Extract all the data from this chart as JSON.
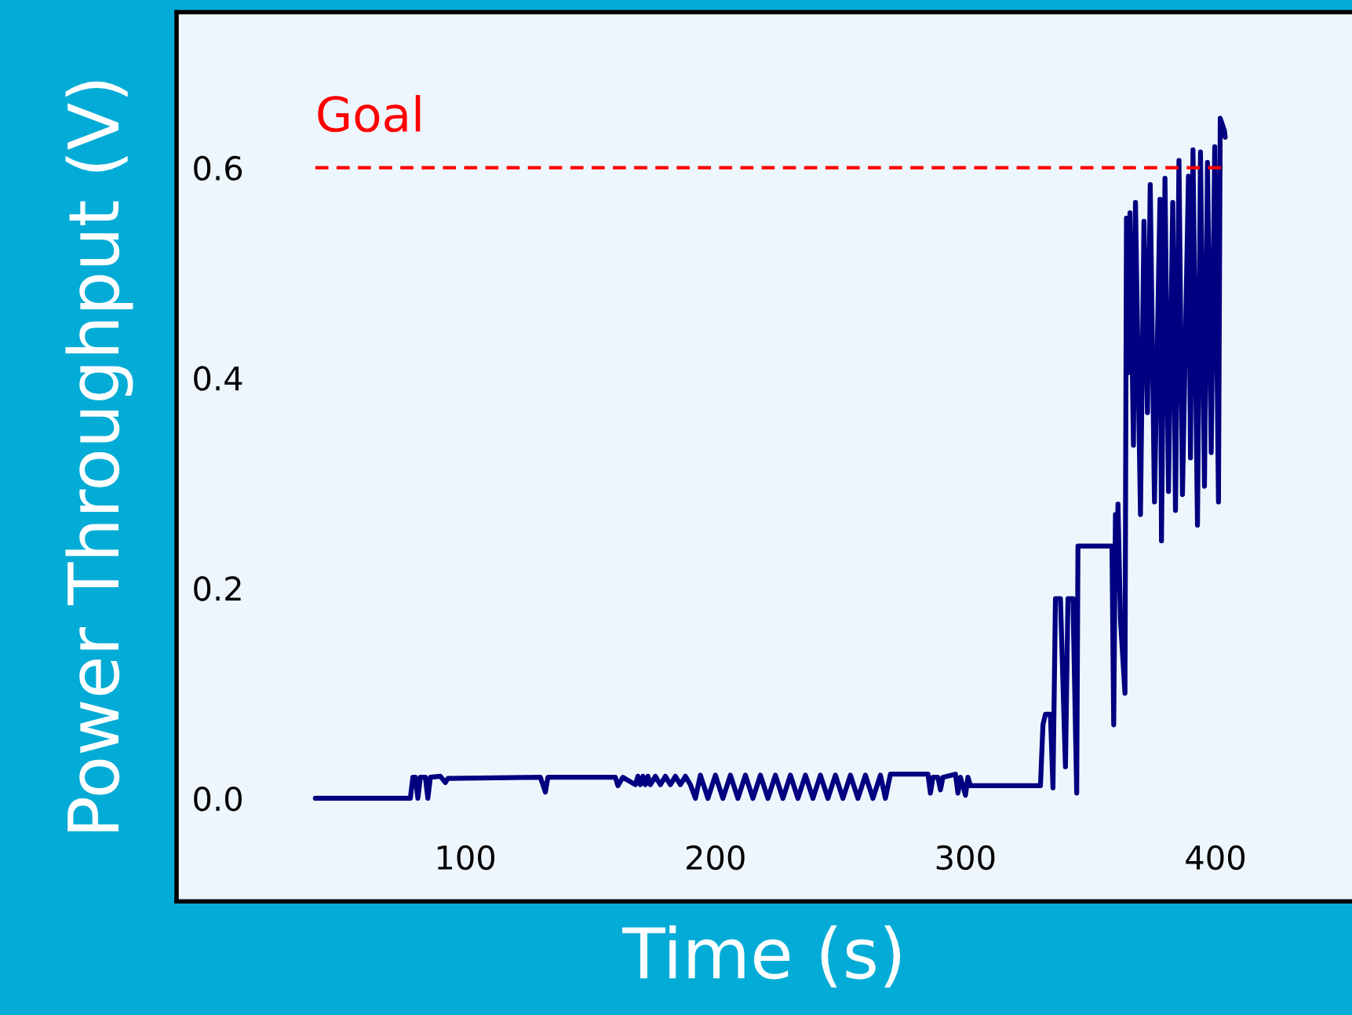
{
  "chart_data": {
    "type": "line",
    "xlabel": "Time (s)",
    "ylabel": "Power Throughput (V)",
    "xlim": [
      -15.5,
      454.6
    ],
    "ylim": [
      -0.098,
      0.748
    ],
    "xticks": [
      100,
      200,
      300,
      400
    ],
    "yticks": [
      {
        "value": 0,
        "label": "0.0"
      },
      0.2,
      0.4,
      0.6
    ],
    "grid": false,
    "legend": false,
    "ref_lines": [
      {
        "axis": "y",
        "value": 0.6,
        "label": "Goal",
        "color": "#ff0000",
        "line_style": "dashed"
      }
    ],
    "series": [
      {
        "color": "#000080",
        "line_style": "solid",
        "marker": "none",
        "x": [
          40,
          78,
          79,
          80,
          81,
          82,
          84,
          85,
          86,
          90,
          92,
          93,
          130,
          132,
          133,
          160,
          161,
          163,
          168,
          169,
          170,
          171,
          172,
          173,
          174,
          176,
          178,
          180,
          182,
          184,
          186,
          188,
          190,
          192,
          194,
          197,
          200,
          203,
          206,
          209,
          212,
          215,
          218,
          221,
          224,
          227,
          230,
          233,
          236,
          239,
          242,
          245,
          248,
          251,
          254,
          257,
          260,
          263,
          266,
          268,
          270,
          285,
          286,
          287,
          289,
          290,
          291,
          296,
          297,
          298,
          300,
          301,
          302,
          330,
          331,
          332,
          334,
          335,
          336,
          338,
          340,
          341,
          343,
          344.5,
          345,
          358.6,
          359.3,
          360,
          360.5,
          361,
          362,
          363.8,
          364.4,
          365.1,
          365.8,
          367.2,
          368,
          370,
          371.4,
          372.8,
          373.9,
          375.6,
          377.8,
          378.4,
          379.8,
          381.2,
          382.9,
          384,
          385.4,
          386.8,
          389.2,
          390,
          391,
          392.8,
          394,
          395.6,
          396.8,
          398.3,
          399.7,
          401.2,
          401.9,
          403.6,
          403.9
        ],
        "values": [
          0,
          0,
          0.02,
          0.02,
          0,
          0.02,
          0.02,
          0,
          0.02,
          0.021,
          0.015,
          0.019,
          0.02,
          0.006,
          0.02,
          0.02,
          0.012,
          0.02,
          0.013,
          0.021,
          0.013,
          0.021,
          0.013,
          0.021,
          0.013,
          0.021,
          0.013,
          0.021,
          0.013,
          0.021,
          0.013,
          0.021,
          0.013,
          0,
          0.022,
          0,
          0.022,
          0,
          0.022,
          0,
          0.022,
          0,
          0.022,
          0,
          0.022,
          0,
          0.022,
          0,
          0.022,
          0,
          0.022,
          0,
          0.022,
          0,
          0.022,
          0,
          0.022,
          0,
          0.022,
          0,
          0.023,
          0.023,
          0.005,
          0.02,
          0.02,
          0.008,
          0.02,
          0.023,
          0.005,
          0.02,
          0.003,
          0.02,
          0.012,
          0.012,
          0.07,
          0.08,
          0.08,
          0.01,
          0.19,
          0.19,
          0.03,
          0.19,
          0.19,
          0.005,
          0.24,
          0.24,
          0.07,
          0.27,
          0.2,
          0.28,
          0.17,
          0.1,
          0.552,
          0.405,
          0.557,
          0.336,
          0.567,
          0.27,
          0.549,
          0.367,
          0.584,
          0.282,
          0.57,
          0.245,
          0.59,
          0.292,
          0.567,
          0.274,
          0.607,
          0.289,
          0.592,
          0.324,
          0.617,
          0.26,
          0.615,
          0.297,
          0.605,
          0.329,
          0.62,
          0.282,
          0.647,
          0.635,
          0.629
        ]
      }
    ]
  }
}
